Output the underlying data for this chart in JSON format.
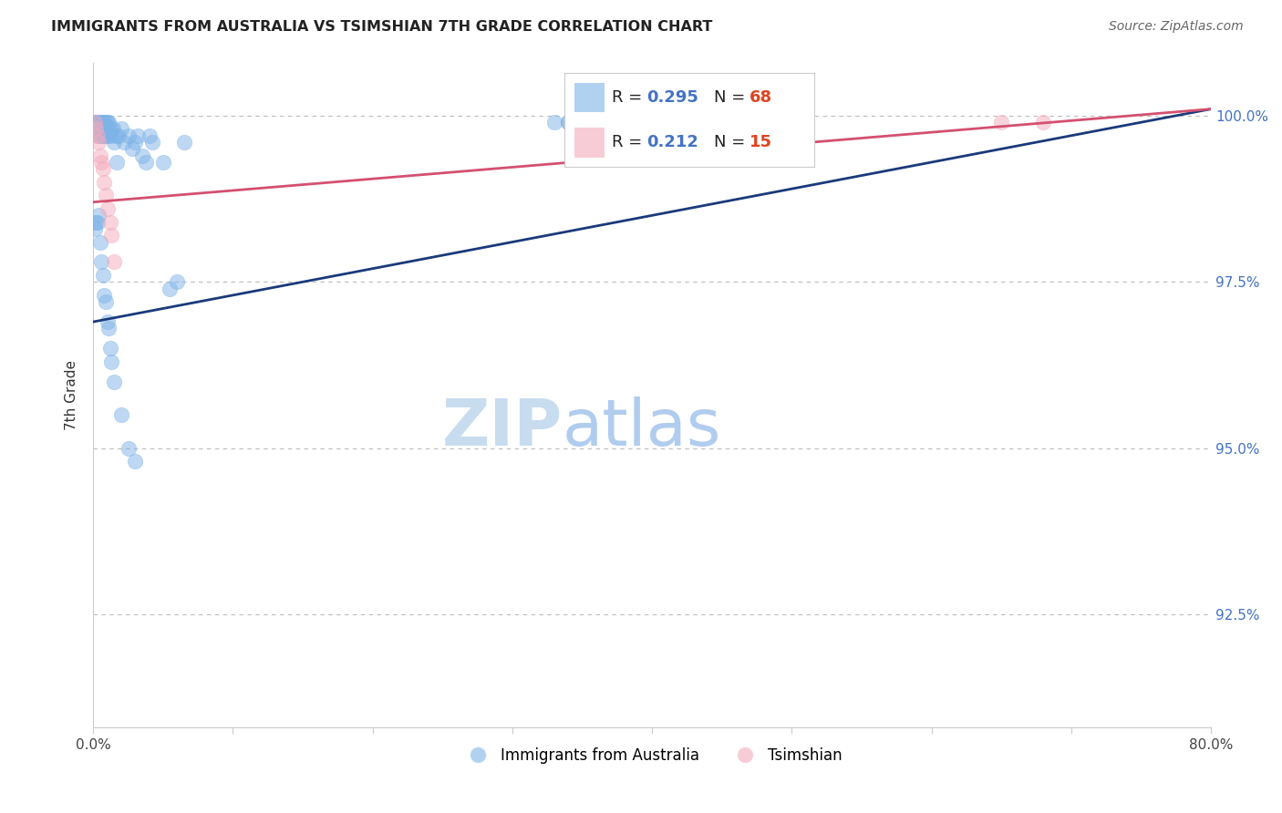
{
  "title": "IMMIGRANTS FROM AUSTRALIA VS TSIMSHIAN 7TH GRADE CORRELATION CHART",
  "source": "Source: ZipAtlas.com",
  "ylabel": "7th Grade",
  "ytick_labels": [
    "100.0%",
    "97.5%",
    "95.0%",
    "92.5%"
  ],
  "ytick_values": [
    1.0,
    0.975,
    0.95,
    0.925
  ],
  "xmin": 0.0,
  "xmax": 0.8,
  "ymin": 0.908,
  "ymax": 1.008,
  "legend_blue_r": "R = 0.295",
  "legend_blue_n": "N = 68",
  "legend_pink_r": "R = 0.212",
  "legend_pink_n": "N = 15",
  "blue_color": "#7EB3E8",
  "pink_color": "#F4AABC",
  "trendline_blue": "#1A3A7A",
  "trendline_pink": "#D45070",
  "blue_scatter_x": [
    0.001,
    0.002,
    0.002,
    0.003,
    0.003,
    0.003,
    0.004,
    0.004,
    0.005,
    0.005,
    0.005,
    0.006,
    0.006,
    0.007,
    0.007,
    0.007,
    0.008,
    0.008,
    0.009,
    0.009,
    0.01,
    0.01,
    0.01,
    0.011,
    0.012,
    0.013,
    0.014,
    0.015,
    0.016,
    0.017,
    0.018,
    0.02,
    0.022,
    0.025,
    0.028,
    0.03,
    0.032,
    0.035,
    0.038,
    0.04,
    0.042,
    0.05,
    0.055,
    0.06,
    0.065,
    0.001,
    0.002,
    0.003,
    0.004,
    0.005,
    0.006,
    0.007,
    0.008,
    0.009,
    0.01,
    0.011,
    0.012,
    0.013,
    0.015,
    0.02,
    0.025,
    0.03,
    0.33,
    0.34,
    0.34,
    0.36,
    0.35,
    0.36
  ],
  "blue_scatter_y": [
    0.999,
    0.999,
    0.998,
    0.999,
    0.998,
    0.997,
    0.999,
    0.998,
    0.999,
    0.998,
    0.997,
    0.999,
    0.998,
    0.999,
    0.998,
    0.997,
    0.999,
    0.997,
    0.999,
    0.997,
    0.999,
    0.998,
    0.997,
    0.999,
    0.997,
    0.998,
    0.998,
    0.996,
    0.997,
    0.993,
    0.997,
    0.998,
    0.996,
    0.997,
    0.995,
    0.996,
    0.997,
    0.994,
    0.993,
    0.997,
    0.996,
    0.993,
    0.974,
    0.975,
    0.996,
    0.983,
    0.984,
    0.984,
    0.985,
    0.981,
    0.978,
    0.976,
    0.973,
    0.972,
    0.969,
    0.968,
    0.965,
    0.963,
    0.96,
    0.955,
    0.95,
    0.948,
    0.999,
    0.999,
    0.999,
    0.999,
    0.999,
    0.999
  ],
  "pink_scatter_x": [
    0.001,
    0.002,
    0.003,
    0.004,
    0.005,
    0.006,
    0.007,
    0.008,
    0.009,
    0.01,
    0.012,
    0.013,
    0.015,
    0.65,
    0.68
  ],
  "pink_scatter_y": [
    0.999,
    0.998,
    0.997,
    0.996,
    0.994,
    0.993,
    0.992,
    0.99,
    0.988,
    0.986,
    0.984,
    0.982,
    0.978,
    0.999,
    0.999
  ],
  "blue_trend_x0": 0.0,
  "blue_trend_x1": 0.8,
  "blue_trend_y0": 0.969,
  "blue_trend_y1": 1.001,
  "pink_trend_x0": 0.0,
  "pink_trend_x1": 0.8,
  "pink_trend_y0": 0.987,
  "pink_trend_y1": 1.001,
  "watermark_zip": "ZIP",
  "watermark_atlas": "atlas",
  "grid_color": "#BBBBBB",
  "spine_color": "#CCCCCC",
  "ytick_color": "#4472C4",
  "title_color": "#222222",
  "source_color": "#666666"
}
